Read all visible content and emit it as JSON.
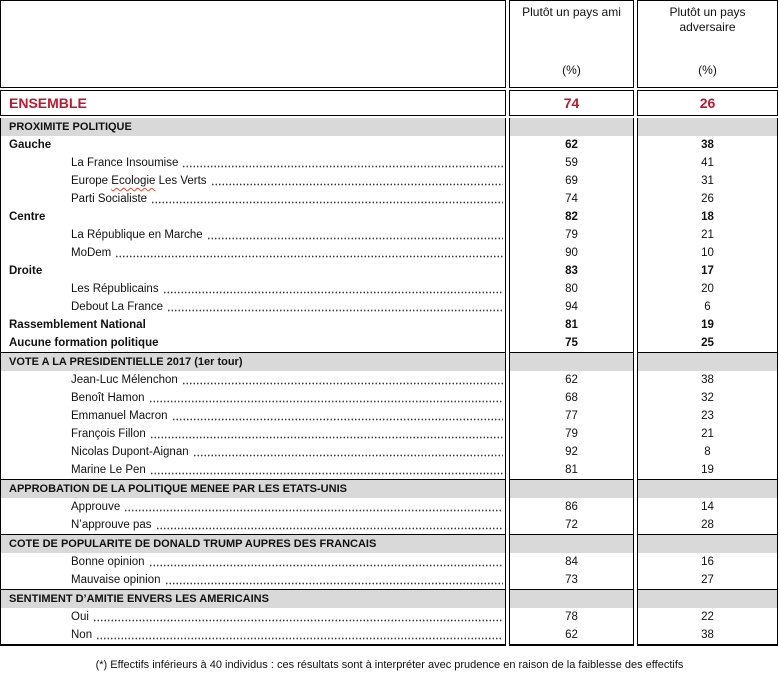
{
  "header": {
    "ami": {
      "title": "Plutôt un pays ami",
      "unit": "(%)"
    },
    "adv": {
      "title": "Plutôt un pays adversaire",
      "unit": "(%)"
    }
  },
  "ensemble": {
    "label": "ENSEMBLE",
    "ami": "74",
    "adv": "26"
  },
  "sections": [
    {
      "title": "PROXIMITE POLITIQUE",
      "rows": [
        {
          "label": "Gauche",
          "ami": "62",
          "adv": "38"
        },
        {
          "label": "La France Insoumise",
          "ami": "59",
          "adv": "41"
        },
        {
          "label_pre": "Europe ",
          "label_wavy": "Ecologie",
          "label_post": " Les Verts",
          "ami": "69",
          "adv": "31"
        },
        {
          "label": "Parti Socialiste",
          "ami": "74",
          "adv": "26"
        },
        {
          "label": "Centre",
          "ami": "82",
          "adv": "18"
        },
        {
          "label": "La République en Marche",
          "ami": "79",
          "adv": "21"
        },
        {
          "label": "MoDem",
          "ami": "90",
          "adv": "10"
        },
        {
          "label": "Droite",
          "ami": "83",
          "adv": "17"
        },
        {
          "label": "Les Républicains",
          "ami": "80",
          "adv": "20"
        },
        {
          "label": "Debout La France",
          "ami": "94",
          "adv": "6"
        },
        {
          "label": "Rassemblement National",
          "ami": "81",
          "adv": "19"
        },
        {
          "label": "Aucune formation politique",
          "ami": "75",
          "adv": "25"
        }
      ]
    },
    {
      "title": "VOTE A LA PRESIDENTIELLE 2017 (1er tour)",
      "rows": [
        {
          "label": "Jean-Luc Mélenchon",
          "ami": "62",
          "adv": "38"
        },
        {
          "label": "Benoît Hamon",
          "ami": "68",
          "adv": "32"
        },
        {
          "label": "Emmanuel Macron",
          "ami": "77",
          "adv": "23"
        },
        {
          "label": "François Fillon",
          "ami": "79",
          "adv": "21"
        },
        {
          "label": "Nicolas Dupont-Aignan",
          "ami": "92",
          "adv": "8"
        },
        {
          "label": "Marine Le Pen",
          "ami": "81",
          "adv": "19"
        }
      ]
    },
    {
      "title": "APPROBATION DE LA POLITIQUE MENEE PAR LES ETATS-UNIS",
      "rows": [
        {
          "label": "Approuve",
          "ami": "86",
          "adv": "14"
        },
        {
          "label": "N’approuve pas",
          "ami": "72",
          "adv": "28"
        }
      ]
    },
    {
      "title": "COTE DE POPULARITE DE DONALD TRUMP AUPRES DES FRANCAIS",
      "rows": [
        {
          "label": "Bonne opinion",
          "ami": "84",
          "adv": "16"
        },
        {
          "label": "Mauvaise opinion",
          "ami": "73",
          "adv": "27"
        }
      ]
    },
    {
      "title": "SENTIMENT D’AMITIE ENVERS LES AMERICAINS",
      "rows": [
        {
          "label": "Oui",
          "ami": "78",
          "adv": "22"
        },
        {
          "label": "Non",
          "ami": "62",
          "adv": "38"
        }
      ]
    }
  ],
  "footnote": "(*) Effectifs inférieurs à 40 individus : ces résultats sont à interpréter avec prudence en raison de la faiblesse des effectifs",
  "colors": {
    "accent_red": "#bc1930",
    "section_bg": "#d9d9d9",
    "border": "#000000",
    "spellcheck_wavy": "#e8492e"
  }
}
